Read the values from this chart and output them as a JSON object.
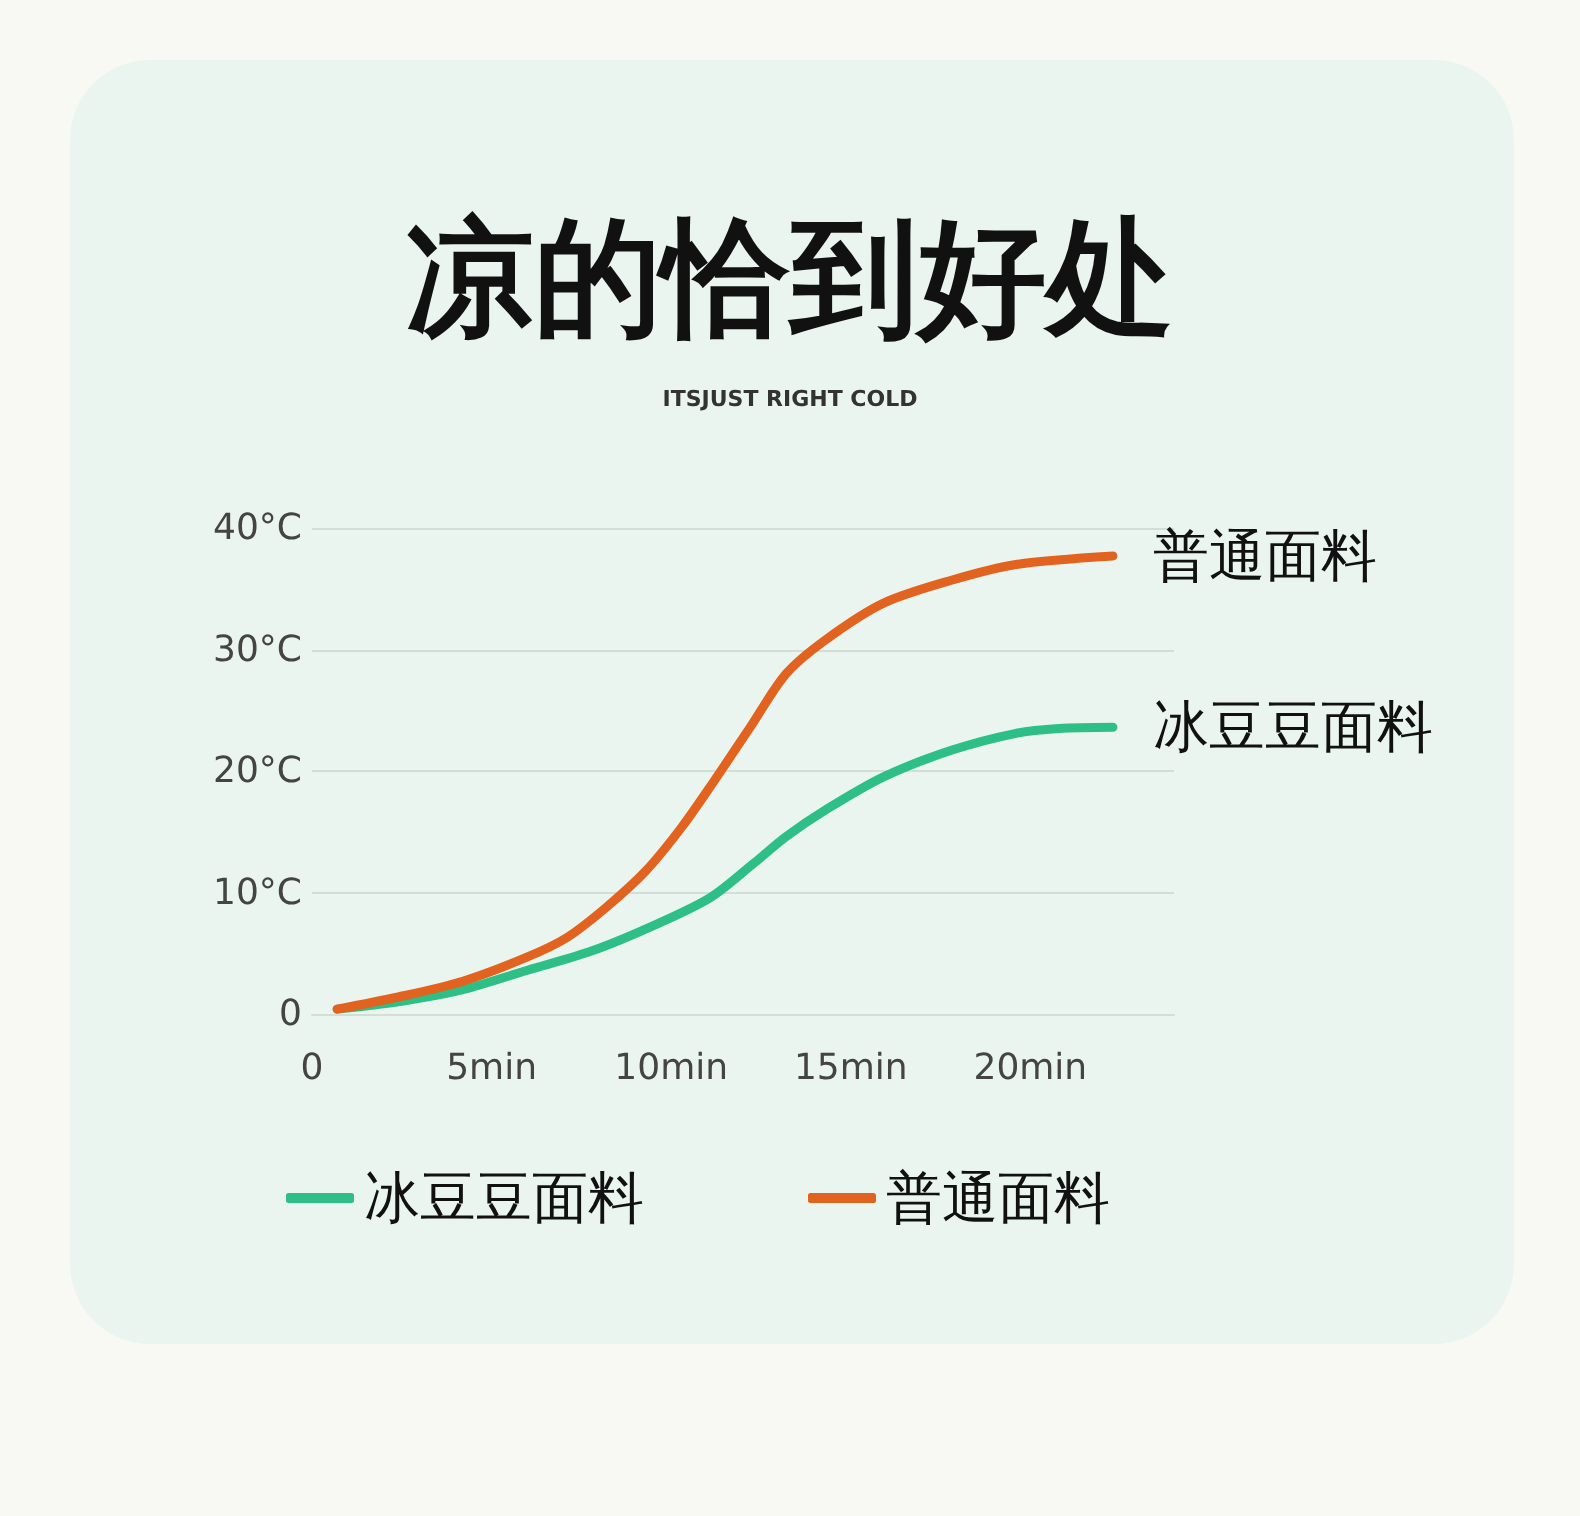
{
  "chart_data": {
    "type": "line",
    "title": "凉的恰到好处",
    "subtitle": "ITSJUST RIGHT COLD",
    "series": [
      {
        "name": "冰豆豆面料",
        "color": "#2dbf85",
        "x": [
          0.7,
          2.4,
          4.2,
          6.0,
          7.8,
          9.6,
          11.1,
          12.3,
          13.2,
          14.3,
          15.9,
          17.8,
          19.6,
          20.8,
          22.3
        ],
        "values": [
          0.4,
          1.0,
          2.0,
          3.6,
          5.2,
          7.4,
          9.6,
          12.4,
          14.6,
          16.8,
          19.5,
          21.7,
          23.1,
          23.5,
          23.6
        ]
      },
      {
        "name": "普通面料",
        "color": "#e2621f",
        "x": [
          0.7,
          2.4,
          4.2,
          6.0,
          7.1,
          8.2,
          9.3,
          10.3,
          11.2,
          12.2,
          13.2,
          14.3,
          15.9,
          17.8,
          19.6,
          22.3
        ],
        "values": [
          0.4,
          1.4,
          2.7,
          4.7,
          6.3,
          8.8,
          11.8,
          15.4,
          19.2,
          23.6,
          28.0,
          30.8,
          33.8,
          35.7,
          37.0,
          37.7
        ]
      }
    ],
    "xlim": [
      0,
      24
    ],
    "xticks": [
      0,
      {
        "value": 5,
        "label": "5min"
      },
      {
        "value": 10,
        "label": "10min"
      },
      {
        "value": 15,
        "label": "15min"
      },
      {
        "value": 20,
        "label": "20min"
      }
    ],
    "ylim": [
      0,
      40
    ],
    "yticks": [
      0,
      {
        "value": 10,
        "label": "10°C"
      },
      {
        "value": 20,
        "label": "20°C"
      },
      {
        "value": 30,
        "label": "30°C"
      },
      {
        "value": 40,
        "label": "40°C"
      }
    ],
    "grid": "y",
    "legend": "bottom"
  }
}
